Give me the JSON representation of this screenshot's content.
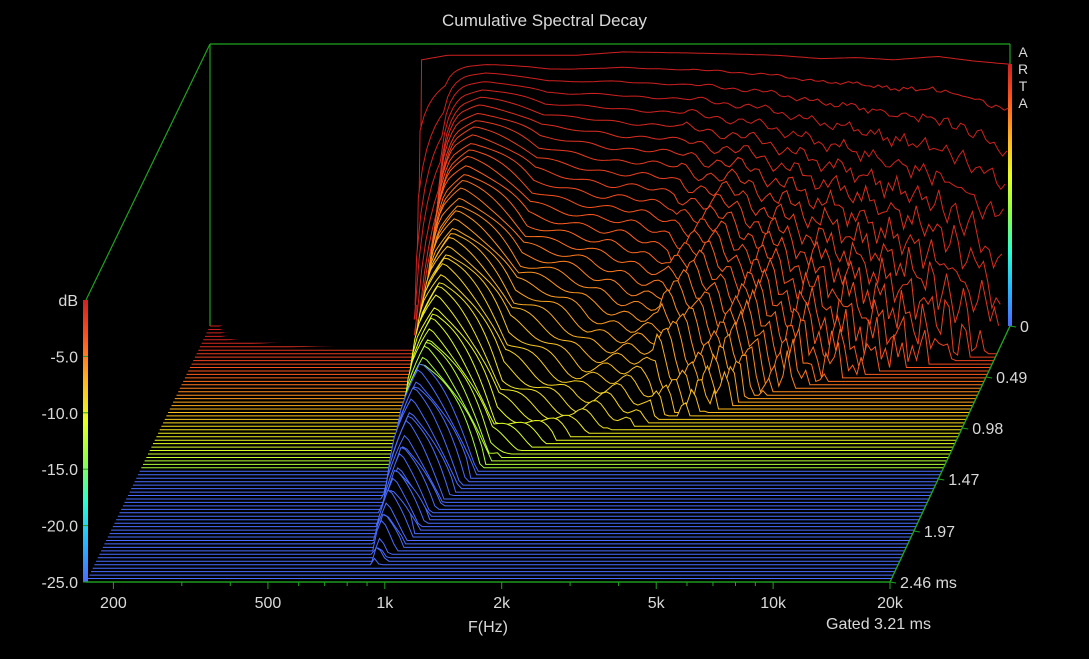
{
  "chart_data": {
    "type": "waterfall",
    "title": "Cumulative Spectral Decay",
    "brand": "ARTA",
    "xlabel": "F(Hz)",
    "x_scale": "log",
    "xlim": [
      170,
      20000
    ],
    "x_ticks": [
      {
        "value": 200,
        "label": "200"
      },
      {
        "value": 500,
        "label": "500"
      },
      {
        "value": 1000,
        "label": "1k"
      },
      {
        "value": 2000,
        "label": "2k"
      },
      {
        "value": 5000,
        "label": "5k"
      },
      {
        "value": 10000,
        "label": "10k"
      },
      {
        "value": 20000,
        "label": "20k"
      }
    ],
    "zlabel": "dB",
    "zlim": [
      -25,
      0
    ],
    "z_ticks": [
      {
        "value": -5,
        "label": "-5.0"
      },
      {
        "value": -10,
        "label": "-10.0"
      },
      {
        "value": -15,
        "label": "-15.0"
      },
      {
        "value": -20,
        "label": "-20.0"
      },
      {
        "value": -25,
        "label": "-25.0"
      }
    ],
    "time_unit": "ms",
    "tlim": [
      0,
      2.46
    ],
    "t_ticks": [
      {
        "value": 0,
        "label": "0"
      },
      {
        "value": 0.49,
        "label": "0.49"
      },
      {
        "value": 0.98,
        "label": "0.98"
      },
      {
        "value": 1.47,
        "label": "1.47"
      },
      {
        "value": 1.97,
        "label": "1.97"
      },
      {
        "value": 2.46,
        "label": "2.46 ms"
      }
    ],
    "slices": 75,
    "gate_note": "Gated 3.21 ms",
    "onset_freq_hz": 600,
    "colormap": [
      "#4a6cff",
      "#25b8ff",
      "#28ffd0",
      "#8cff46",
      "#e8ff1e",
      "#ffb51e",
      "#ff5a1e",
      "#cf2020"
    ],
    "frame_color": "#1fa21f",
    "floor_color": "#4a6cff",
    "initial_response_db": [
      {
        "f": 600,
        "db": -1.4
      },
      {
        "f": 700,
        "db": -1.0
      },
      {
        "f": 1000,
        "db": -1.0
      },
      {
        "f": 1500,
        "db": -1.0
      },
      {
        "f": 2000,
        "db": -0.7
      },
      {
        "f": 3000,
        "db": -0.8
      },
      {
        "f": 4000,
        "db": -0.9
      },
      {
        "f": 5000,
        "db": -1.0
      },
      {
        "f": 6500,
        "db": -1.3
      },
      {
        "f": 8000,
        "db": -1.2
      },
      {
        "f": 10000,
        "db": -1.4
      },
      {
        "f": 13000,
        "db": -1.1
      },
      {
        "f": 16000,
        "db": -1.5
      },
      {
        "f": 20000,
        "db": -1.8
      }
    ],
    "decay_ms_to_floor": [
      {
        "f": 600,
        "t": 0.15
      },
      {
        "f": 700,
        "t": 0.45
      },
      {
        "f": 800,
        "t": 1.8
      },
      {
        "f": 900,
        "t": 2.4
      },
      {
        "f": 1000,
        "t": 2.1
      },
      {
        "f": 1300,
        "t": 1.3
      },
      {
        "f": 2000,
        "t": 1.05
      },
      {
        "f": 3000,
        "t": 0.95
      },
      {
        "f": 4000,
        "t": 0.85
      },
      {
        "f": 6500,
        "t": 0.6
      },
      {
        "f": 10000,
        "t": 0.45
      },
      {
        "f": 15000,
        "t": 0.35
      },
      {
        "f": 20000,
        "t": 0.25
      }
    ]
  }
}
